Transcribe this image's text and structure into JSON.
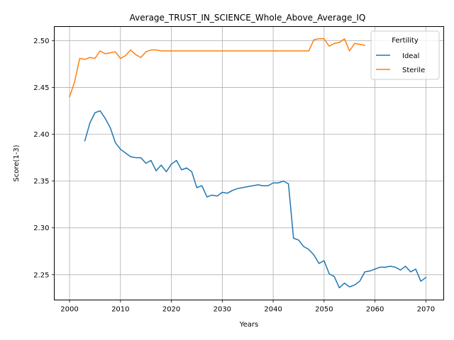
{
  "chart_data": {
    "type": "line",
    "title": "Average_TRUST_IN_SCIENCE_Whole_Above_Average_IQ",
    "xlabel": "Years",
    "ylabel": "Score(1-3)",
    "xlim": [
      1997,
      2073.5
    ],
    "ylim": [
      2.223,
      2.515
    ],
    "xticks": [
      2000,
      2010,
      2020,
      2030,
      2040,
      2050,
      2060,
      2070
    ],
    "yticks": [
      2.25,
      2.3,
      2.35,
      2.4,
      2.45,
      2.5
    ],
    "ytick_labels": [
      "2.25",
      "2.30",
      "2.35",
      "2.40",
      "2.45",
      "2.50"
    ],
    "grid": true,
    "legend": {
      "title": "Fertility",
      "placement": "top-right"
    },
    "series": [
      {
        "name": "Ideal",
        "color": "#1f77b4",
        "x": [
          2003,
          2004,
          2005,
          2006,
          2007,
          2008,
          2009,
          2010,
          2011,
          2012,
          2013,
          2014,
          2015,
          2016,
          2017,
          2018,
          2019,
          2020,
          2021,
          2022,
          2023,
          2024,
          2025,
          2026,
          2027,
          2028,
          2029,
          2030,
          2031,
          2032,
          2033,
          2034,
          2035,
          2036,
          2037,
          2038,
          2039,
          2040,
          2041,
          2042,
          2043,
          2044,
          2045,
          2046,
          2047,
          2048,
          2049,
          2050,
          2051,
          2052,
          2053,
          2054,
          2055,
          2056,
          2057,
          2058,
          2059,
          2060,
          2061,
          2062,
          2063,
          2064,
          2065,
          2066,
          2067,
          2068,
          2069,
          2070
        ],
        "y": [
          2.393,
          2.412,
          2.423,
          2.425,
          2.417,
          2.407,
          2.391,
          2.384,
          2.38,
          2.376,
          2.375,
          2.375,
          2.369,
          2.372,
          2.361,
          2.367,
          2.36,
          2.368,
          2.372,
          2.362,
          2.364,
          2.36,
          2.343,
          2.345,
          2.333,
          2.335,
          2.334,
          2.338,
          2.337,
          2.34,
          2.342,
          2.343,
          2.344,
          2.345,
          2.346,
          2.345,
          2.345,
          2.348,
          2.348,
          2.35,
          2.347,
          2.289,
          2.287,
          2.28,
          2.277,
          2.271,
          2.262,
          2.265,
          2.251,
          2.248,
          2.236,
          2.241,
          2.237,
          2.239,
          2.243,
          2.253,
          2.254,
          2.256,
          2.258,
          2.258,
          2.259,
          2.258,
          2.255,
          2.259,
          2.253,
          2.256,
          2.243,
          2.247
        ]
      },
      {
        "name": "Sterile",
        "color": "#ff7f0e",
        "x": [
          2000,
          2001,
          2002,
          2003,
          2004,
          2005,
          2006,
          2007,
          2008,
          2009,
          2010,
          2011,
          2012,
          2013,
          2014,
          2015,
          2016,
          2017,
          2018,
          2019,
          2020,
          2021,
          2022,
          2023,
          2024,
          2025,
          2026,
          2027,
          2028,
          2029,
          2030,
          2031,
          2032,
          2033,
          2034,
          2035,
          2036,
          2037,
          2038,
          2039,
          2040,
          2041,
          2042,
          2043,
          2044,
          2045,
          2046,
          2047,
          2048,
          2049,
          2050,
          2051,
          2052,
          2053,
          2054,
          2055,
          2056,
          2057,
          2058
        ],
        "y": [
          2.44,
          2.456,
          2.481,
          2.48,
          2.482,
          2.481,
          2.489,
          2.486,
          2.487,
          2.488,
          2.481,
          2.484,
          2.49,
          2.485,
          2.482,
          2.488,
          2.49,
          2.49,
          2.489,
          2.489,
          2.489,
          2.489,
          2.489,
          2.489,
          2.489,
          2.489,
          2.489,
          2.489,
          2.489,
          2.489,
          2.489,
          2.489,
          2.489,
          2.489,
          2.489,
          2.489,
          2.489,
          2.489,
          2.489,
          2.489,
          2.489,
          2.489,
          2.489,
          2.489,
          2.489,
          2.489,
          2.489,
          2.489,
          2.501,
          2.502,
          2.502,
          2.494,
          2.497,
          2.498,
          2.502,
          2.489,
          2.497,
          2.496,
          2.495
        ]
      }
    ]
  }
}
